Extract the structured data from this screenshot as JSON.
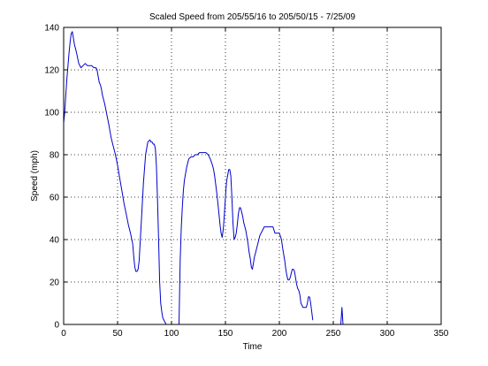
{
  "chart_data": {
    "type": "line",
    "title": "Scaled Speed from 205/55/16 to 205/50/15 - 7/25/09",
    "xlabel": "Time",
    "ylabel": "Speed (mph)",
    "xlim": [
      0,
      350
    ],
    "ylim": [
      0,
      140
    ],
    "xticks": [
      0,
      50,
      100,
      150,
      200,
      250,
      300,
      350
    ],
    "yticks": [
      0,
      20,
      40,
      60,
      80,
      100,
      120,
      140
    ],
    "xtick_labels": [
      "0",
      "50",
      "100",
      "150",
      "200",
      "250",
      "300",
      "350"
    ],
    "ytick_labels": [
      "0",
      "20",
      "40",
      "60",
      "80",
      "100",
      "120",
      "140"
    ],
    "grid": true,
    "line_color": "#0000cc",
    "series": [
      {
        "segments": [
          {
            "x": [
              0,
              1,
              2,
              3,
              4,
              5,
              6,
              7,
              8,
              9,
              10,
              11,
              12,
              14,
              16,
              18,
              20,
              22,
              24,
              26,
              28,
              30,
              31,
              32,
              33,
              34,
              35,
              36,
              38,
              40,
              42,
              44,
              46,
              48,
              50,
              52,
              54,
              56,
              58,
              60,
              62,
              64,
              65,
              66,
              67,
              68,
              69,
              70,
              72,
              74,
              76,
              78,
              80,
              81,
              82,
              83,
              84,
              85,
              86,
              87,
              88,
              89,
              90,
              91,
              92,
              93,
              94,
              95
            ],
            "y": [
              95,
              100,
              108,
              116,
              122,
              128,
              133,
              137,
              138,
              135,
              132,
              130,
              128,
              123,
              121,
              122,
              123,
              122,
              122,
              122,
              121,
              121,
              120,
              117,
              114,
              113,
              111,
              108,
              104,
              99,
              94,
              88,
              84,
              80,
              75,
              69,
              63,
              57,
              52,
              47,
              43,
              38,
              32,
              27,
              25,
              25,
              26,
              30,
              48,
              67,
              80,
              86,
              87,
              86,
              86,
              85,
              85,
              83,
              75,
              60,
              40,
              20,
              10,
              6,
              3,
              2,
              1,
              0
            ]
          },
          {
            "x": [
              107,
              108,
              109,
              110,
              111,
              112,
              114,
              116,
              118,
              120,
              122,
              124,
              126,
              128,
              130,
              132,
              134,
              136,
              138,
              139,
              140,
              141,
              142,
              143,
              144,
              145,
              146,
              147,
              148,
              149,
              150,
              151,
              152,
              153,
              154,
              155,
              156,
              157,
              158,
              159,
              160,
              161,
              162,
              163,
              164,
              165,
              166,
              167,
              168,
              169,
              170,
              171,
              172,
              173,
              174,
              175,
              176,
              177,
              178,
              180,
              182,
              184,
              186,
              188,
              190,
              192,
              194,
              196,
              198,
              200,
              202,
              203,
              204,
              205,
              206,
              207,
              208,
              209,
              210,
              211,
              212,
              213,
              214,
              215,
              216,
              217,
              218,
              219,
              220,
              221,
              222,
              223,
              224,
              225,
              226,
              227,
              228
            ],
            "y": [
              0,
              30,
              45,
              55,
              63,
              68,
              74,
              78,
              79,
              79,
              80,
              80,
              81,
              81,
              81,
              81,
              80,
              78,
              75,
              73,
              70,
              66,
              62,
              57,
              52,
              47,
              43,
              41,
              45,
              52,
              60,
              67,
              70,
              73,
              73,
              70,
              60,
              48,
              40,
              41,
              43,
              47,
              52,
              55,
              55,
              53,
              51,
              48,
              46,
              44,
              41,
              38,
              34,
              31,
              27,
              26,
              29,
              32,
              34,
              38,
              42,
              44,
              46,
              46,
              46,
              46,
              46,
              43,
              43,
              43,
              40,
              36,
              33,
              30,
              26,
              23,
              21,
              21,
              22,
              24,
              26,
              26,
              25,
              22,
              19,
              17,
              16,
              14,
              10,
              9,
              8,
              8,
              8,
              8,
              10,
              13,
              13
            ]
          },
          {
            "x": [
              228,
              229,
              230,
              231
            ],
            "y": [
              13,
              10,
              6,
              2
            ]
          },
          {
            "x": [
              257,
              258,
              259
            ],
            "y": [
              0,
              8,
              0
            ]
          }
        ]
      }
    ]
  }
}
